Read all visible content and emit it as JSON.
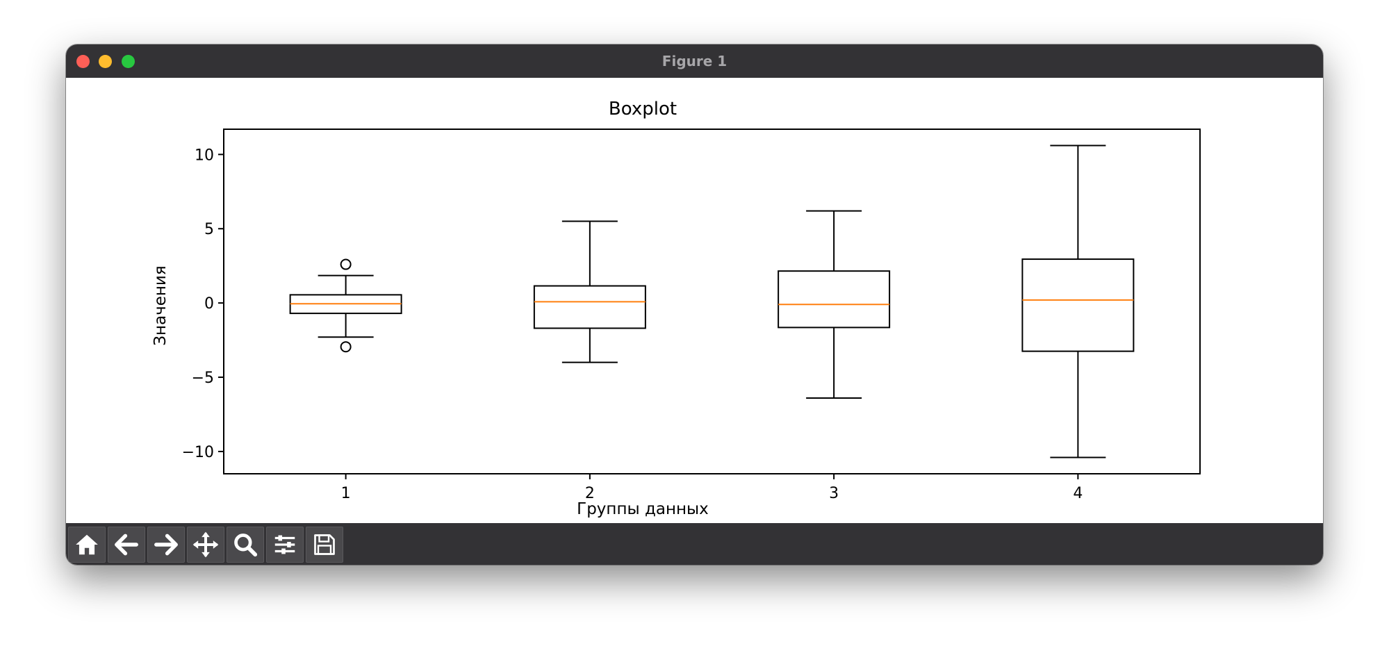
{
  "window": {
    "title": "Figure 1"
  },
  "toolbar": {
    "buttons": [
      {
        "name": "home-button",
        "icon": "home-icon"
      },
      {
        "name": "back-button",
        "icon": "arrow-left-icon"
      },
      {
        "name": "forward-button",
        "icon": "arrow-right-icon"
      },
      {
        "name": "pan-button",
        "icon": "move-icon"
      },
      {
        "name": "zoom-button",
        "icon": "magnifier-icon"
      },
      {
        "name": "configure-subplots-button",
        "icon": "sliders-icon"
      },
      {
        "name": "save-button",
        "icon": "floppy-disk-icon"
      }
    ]
  },
  "colors": {
    "median": "#ff7f0e",
    "box": "#000000",
    "chrome": "#333235"
  },
  "chart_data": {
    "type": "boxplot",
    "title": "Boxplot",
    "xlabel": "Группы данных",
    "ylabel": "Значения",
    "categories": [
      "1",
      "2",
      "3",
      "4"
    ],
    "ylim": [
      -11.5,
      11.7
    ],
    "yticks": [
      -10,
      -5,
      0,
      5,
      10
    ],
    "ytick_labels": [
      "−10",
      "−5",
      "0",
      "5",
      "10"
    ],
    "grid": false,
    "boxes": [
      {
        "category": "1",
        "whisker_low": -2.3,
        "q1": -0.7,
        "median": -0.05,
        "q3": 0.55,
        "whisker_high": 1.85,
        "outliers": [
          2.6,
          -2.95
        ]
      },
      {
        "category": "2",
        "whisker_low": -4.0,
        "q1": -1.7,
        "median": 0.08,
        "q3": 1.15,
        "whisker_high": 5.5,
        "outliers": []
      },
      {
        "category": "3",
        "whisker_low": -6.4,
        "q1": -1.65,
        "median": -0.1,
        "q3": 2.15,
        "whisker_high": 6.2,
        "outliers": []
      },
      {
        "category": "4",
        "whisker_low": -10.4,
        "q1": -3.25,
        "median": 0.2,
        "q3": 2.95,
        "whisker_high": 10.6,
        "outliers": []
      }
    ]
  }
}
